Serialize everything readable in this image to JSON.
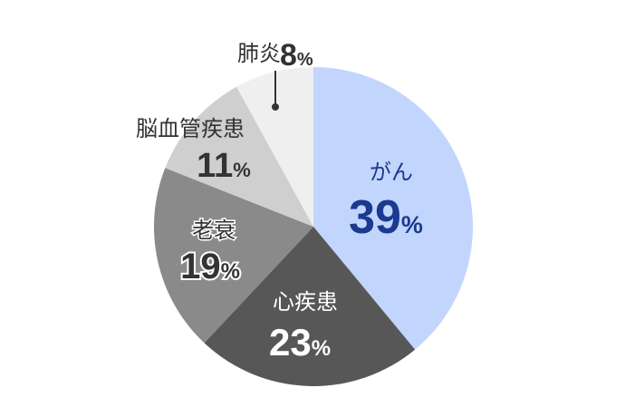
{
  "chart_data": {
    "type": "pie",
    "unit": "%",
    "start_angle_deg": 0,
    "direction": "clockwise",
    "slices": [
      {
        "label": "がん",
        "value": 39,
        "color": "#c2d5fc",
        "text_color": "#1b3a8f"
      },
      {
        "label": "心疾患",
        "value": 23,
        "color": "#575757",
        "text_color": "#ffffff"
      },
      {
        "label": "老衰",
        "value": 19,
        "color": "#8a8a8a",
        "text_color": "#333333",
        "outline": "#ffffff"
      },
      {
        "label": "脳血管疾患",
        "value": 11,
        "color": "#cfcfcf",
        "text_color": "#333333"
      },
      {
        "label": "肺炎",
        "value": 8,
        "color": "#efefef",
        "text_color": "#333333",
        "leader": true
      }
    ]
  }
}
